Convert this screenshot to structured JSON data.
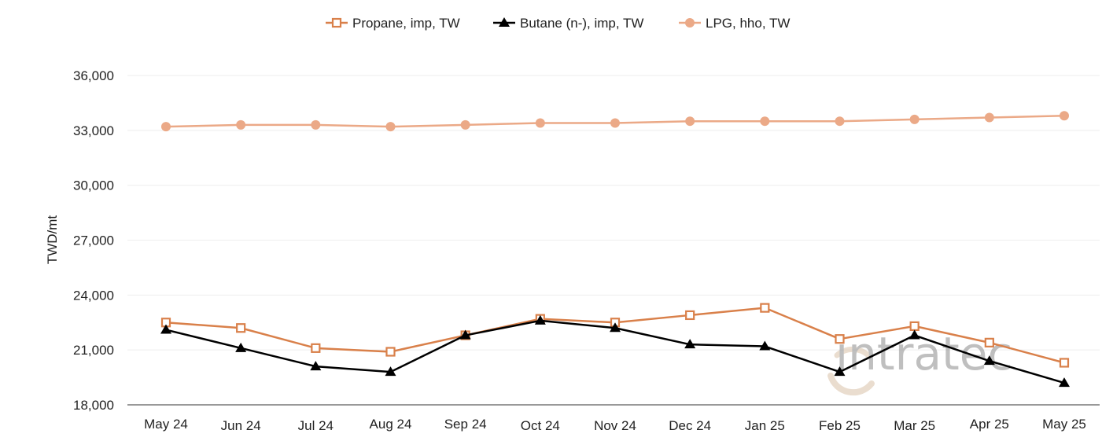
{
  "chart_data": {
    "type": "line",
    "title": "",
    "xlabel": "",
    "ylabel": "TWD/mt",
    "ylim": [
      18000,
      36000
    ],
    "yticks": [
      18000,
      21000,
      24000,
      27000,
      30000,
      33000,
      36000
    ],
    "ytick_labels": [
      "18,000",
      "21,000",
      "24,000",
      "27,000",
      "30,000",
      "33,000",
      "36,000"
    ],
    "categories": [
      "May 24",
      "Jun 24",
      "Jul 24",
      "Aug 24",
      "Sep 24",
      "Oct 24",
      "Nov 24",
      "Dec 24",
      "Jan 25",
      "Feb 25",
      "Mar 25",
      "Apr 25",
      "May 25"
    ],
    "legend_position": "top-center",
    "grid": true,
    "series": [
      {
        "name": "Propane, imp, TW",
        "color": "#d9804a",
        "marker": "square-open",
        "values": [
          22500,
          22200,
          21100,
          20900,
          21800,
          22700,
          22500,
          22900,
          23300,
          21600,
          22300,
          21400,
          20300
        ]
      },
      {
        "name": "Butane (n-), imp, TW",
        "color": "#000000",
        "marker": "triangle",
        "values": [
          22100,
          21100,
          20100,
          19800,
          21800,
          22600,
          22200,
          21300,
          21200,
          19800,
          21800,
          20400,
          19200
        ]
      },
      {
        "name": "LPG, hho, TW",
        "color": "#eba987",
        "marker": "circle",
        "values": [
          33200,
          33300,
          33300,
          33200,
          33300,
          33400,
          33400,
          33500,
          33500,
          33500,
          33600,
          33700,
          33800
        ]
      }
    ],
    "watermark": "intratec"
  },
  "colors": {
    "grid": "#eeeeee",
    "axis": "#333333",
    "watermark": "#d9c2a8",
    "watermark_text": "#8c8c8c"
  }
}
